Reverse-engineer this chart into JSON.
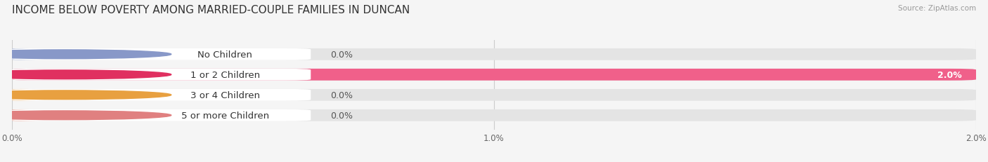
{
  "title": "INCOME BELOW POVERTY AMONG MARRIED-COUPLE FAMILIES IN DUNCAN",
  "source": "Source: ZipAtlas.com",
  "categories": [
    "No Children",
    "1 or 2 Children",
    "3 or 4 Children",
    "5 or more Children"
  ],
  "values": [
    0.0,
    2.0,
    0.0,
    0.0
  ],
  "bar_colors": [
    "#a8b8d8",
    "#f0608a",
    "#f5c07a",
    "#f0a898"
  ],
  "label_circle_colors": [
    "#8898c8",
    "#e03060",
    "#e8a040",
    "#e08080"
  ],
  "xlim": [
    0,
    2.0
  ],
  "xticks": [
    0.0,
    1.0,
    2.0
  ],
  "xticklabels": [
    "0.0%",
    "1.0%",
    "2.0%"
  ],
  "bar_height": 0.58,
  "background_color": "#f5f5f5",
  "bar_bg_color": "#e4e4e4",
  "title_fontsize": 11,
  "label_fontsize": 9.5,
  "value_fontsize": 9
}
